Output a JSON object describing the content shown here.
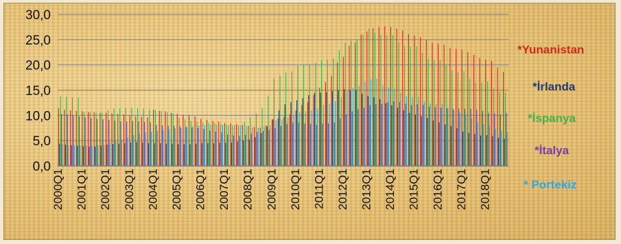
{
  "chart_data": {
    "type": "bar",
    "title": "",
    "xlabel": "",
    "ylabel": "",
    "ylim": [
      0,
      30
    ],
    "y_ticks": [
      "0,0",
      "5,0",
      "10,0",
      "15,0",
      "20,0",
      "25,0",
      "30,0"
    ],
    "grid": true,
    "legend_position": "right",
    "x_tick_labels": [
      "2000Q1",
      "2001Q1",
      "2002Q1",
      "2003Q1",
      "2004Q1",
      "2005Q1",
      "2006Q1",
      "2007Q1",
      "2008Q1",
      "2009Q1",
      "2010Q1",
      "2011Q1",
      "2012Q1",
      "2013Q1",
      "2014Q1",
      "2015Q1",
      "2016Q1",
      "2017Q1",
      "2018Q1"
    ],
    "categories": [
      "2000Q1",
      "2000Q2",
      "2000Q3",
      "2000Q4",
      "2001Q1",
      "2001Q2",
      "2001Q3",
      "2001Q4",
      "2002Q1",
      "2002Q2",
      "2002Q3",
      "2002Q4",
      "2003Q1",
      "2003Q2",
      "2003Q3",
      "2003Q4",
      "2004Q1",
      "2004Q2",
      "2004Q3",
      "2004Q4",
      "2005Q1",
      "2005Q2",
      "2005Q3",
      "2005Q4",
      "2006Q1",
      "2006Q2",
      "2006Q3",
      "2006Q4",
      "2007Q1",
      "2007Q2",
      "2007Q3",
      "2007Q4",
      "2008Q1",
      "2008Q2",
      "2008Q3",
      "2008Q4",
      "2009Q1",
      "2009Q2",
      "2009Q3",
      "2009Q4",
      "2010Q1",
      "2010Q2",
      "2010Q3",
      "2010Q4",
      "2011Q1",
      "2011Q2",
      "2011Q3",
      "2011Q4",
      "2012Q1",
      "2012Q2",
      "2012Q3",
      "2012Q4",
      "2013Q1",
      "2013Q2",
      "2013Q3",
      "2013Q4",
      "2014Q1",
      "2014Q2",
      "2014Q3",
      "2014Q4",
      "2015Q1",
      "2015Q2",
      "2015Q3",
      "2015Q4",
      "2016Q1",
      "2016Q2",
      "2016Q3",
      "2016Q4",
      "2017Q1",
      "2017Q2",
      "2017Q3",
      "2017Q4",
      "2018Q1",
      "2018Q2",
      "2018Q3",
      "2018Q4"
    ],
    "series": [
      {
        "name": "*Yunanistan",
        "color": "#d42a1e",
        "values": [
          11.4,
          11.1,
          11.0,
          10.9,
          10.8,
          10.7,
          10.6,
          10.5,
          10.5,
          10.4,
          10.3,
          10.2,
          10.0,
          9.8,
          9.7,
          9.6,
          11.1,
          10.9,
          10.8,
          10.5,
          10.3,
          10.1,
          10.0,
          9.8,
          9.3,
          9.1,
          8.9,
          8.8,
          8.5,
          8.4,
          8.3,
          8.1,
          7.9,
          7.7,
          7.6,
          8.0,
          9.2,
          9.4,
          9.7,
          10.2,
          11.0,
          12.0,
          12.6,
          14.0,
          15.5,
          16.6,
          17.8,
          20.5,
          21.6,
          23.8,
          24.4,
          26.0,
          26.6,
          27.3,
          27.5,
          27.6,
          27.5,
          27.2,
          26.8,
          26.1,
          25.8,
          25.5,
          25.0,
          24.4,
          24.2,
          24.0,
          23.4,
          23.2,
          23.0,
          22.6,
          22.0,
          21.4,
          21.0,
          20.8,
          19.5,
          18.6
        ]
      },
      {
        "name": "*İrlanda",
        "color": "#1f3a7a",
        "values": [
          4.4,
          4.2,
          4.1,
          4.0,
          3.9,
          3.8,
          3.8,
          4.0,
          4.2,
          4.3,
          4.4,
          4.5,
          4.6,
          4.7,
          4.6,
          4.5,
          4.5,
          4.5,
          4.4,
          4.4,
          4.3,
          4.3,
          4.3,
          4.4,
          4.5,
          4.5,
          4.5,
          4.6,
          4.6,
          4.6,
          4.8,
          5.0,
          5.2,
          5.7,
          6.5,
          7.8,
          9.2,
          11.0,
          12.2,
          12.6,
          13.0,
          13.4,
          14.0,
          14.5,
          14.5,
          14.6,
          14.8,
          15.0,
          15.2,
          15.0,
          15.0,
          14.3,
          13.8,
          13.6,
          13.2,
          12.4,
          12.0,
          11.5,
          11.0,
          10.5,
          10.2,
          9.8,
          9.5,
          9.0,
          8.6,
          8.2,
          7.9,
          7.5,
          6.8,
          6.5,
          6.3,
          6.0,
          6.1,
          5.9,
          5.6,
          5.4
        ]
      },
      {
        "name": "*İspanya",
        "color": "#3fb24b",
        "values": [
          13.8,
          13.7,
          13.6,
          13.5,
          10.6,
          10.6,
          10.5,
          10.6,
          11.1,
          11.3,
          11.4,
          11.5,
          11.5,
          11.4,
          11.3,
          11.1,
          11.1,
          10.9,
          10.6,
          10.4,
          9.5,
          9.2,
          8.9,
          8.7,
          8.6,
          8.5,
          8.4,
          8.3,
          8.2,
          8.0,
          8.0,
          8.6,
          9.6,
          10.4,
          11.5,
          13.9,
          17.3,
          17.9,
          18.5,
          18.7,
          19.8,
          20.1,
          20.1,
          20.4,
          20.9,
          21.0,
          21.3,
          22.9,
          24.4,
          24.8,
          25.0,
          26.0,
          27.2,
          26.3,
          26.0,
          25.9,
          25.9,
          24.5,
          23.7,
          23.6,
          23.7,
          22.4,
          21.2,
          20.9,
          21.0,
          20.0,
          18.9,
          18.6,
          18.8,
          17.2,
          16.4,
          16.5,
          16.7,
          15.3,
          14.6,
          14.5
        ]
      },
      {
        "name": "*İtalya",
        "color": "#7a3fa1",
        "values": [
          10.3,
          10.2,
          10.0,
          9.8,
          9.6,
          9.4,
          9.3,
          9.2,
          9.1,
          9.0,
          8.8,
          8.8,
          8.9,
          8.8,
          8.7,
          8.6,
          8.1,
          8.0,
          7.9,
          7.9,
          7.8,
          7.7,
          7.6,
          7.5,
          7.3,
          7.0,
          6.8,
          6.6,
          6.2,
          6.0,
          5.9,
          6.2,
          6.4,
          6.7,
          6.9,
          7.1,
          7.5,
          7.9,
          8.3,
          8.5,
          8.6,
          8.4,
          8.3,
          8.1,
          8.4,
          8.4,
          8.6,
          9.4,
          10.2,
          10.8,
          11.2,
          11.5,
          12.0,
          12.2,
          12.3,
          12.6,
          12.8,
          12.6,
          12.3,
          12.0,
          12.2,
          12.1,
          11.7,
          11.6,
          11.5,
          11.4,
          11.3,
          11.3,
          11.3,
          11.3,
          11.1,
          10.9,
          10.5,
          10.4,
          10.2,
          10.5
        ]
      },
      {
        "name": "* Portekiz",
        "color": "#2fa8e0",
        "values": [
          4.3,
          4.1,
          4.1,
          4.0,
          4.0,
          4.0,
          4.1,
          4.2,
          4.5,
          4.8,
          5.2,
          5.6,
          6.1,
          6.4,
          6.6,
          6.8,
          6.9,
          7.1,
          7.2,
          7.4,
          7.5,
          7.7,
          7.8,
          8.0,
          8.1,
          8.1,
          8.2,
          8.1,
          8.0,
          8.0,
          8.0,
          7.9,
          7.6,
          7.5,
          7.8,
          8.0,
          9.0,
          9.2,
          9.6,
          10.2,
          10.6,
          10.8,
          11.0,
          11.3,
          12.0,
          12.3,
          12.8,
          13.6,
          14.8,
          15.4,
          15.8,
          16.6,
          17.2,
          17.3,
          16.0,
          15.5,
          15.2,
          14.5,
          13.8,
          13.6,
          13.7,
          12.7,
          12.4,
          12.2,
          12.2,
          11.4,
          11.0,
          10.5,
          10.2,
          9.3,
          8.7,
          8.3,
          7.9,
          7.3,
          6.9,
          6.7
        ]
      }
    ]
  }
}
